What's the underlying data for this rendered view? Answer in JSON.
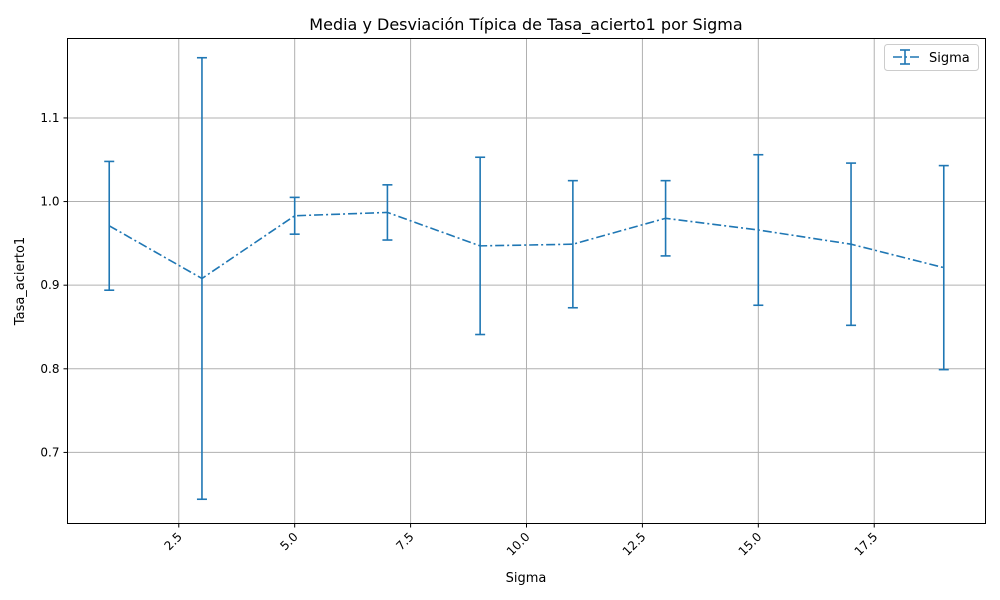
{
  "chart_data": {
    "type": "line",
    "title": "Media y Desviación Típica de Tasa_acierto1 por Sigma",
    "xlabel": "Sigma",
    "ylabel": "Tasa_acierto1",
    "xlim": [
      0.1,
      19.9
    ],
    "ylim": [
      0.615,
      1.195
    ],
    "xticks": [
      2.5,
      5.0,
      7.5,
      10.0,
      12.5,
      15.0,
      17.5
    ],
    "xtick_labels": [
      "2.5",
      "5.0",
      "7.5",
      "10.0",
      "12.5",
      "15.0",
      "17.5"
    ],
    "yticks": [
      0.7,
      0.8,
      0.9,
      1.0,
      1.1
    ],
    "ytick_labels": [
      "0.7",
      "0.8",
      "0.9",
      "1.0",
      "1.1"
    ],
    "xtick_rotation": 45,
    "grid": true,
    "legend_position": "top-right",
    "line_style": "dash-dot",
    "color": "#1f77b4",
    "series": [
      {
        "name": "Sigma",
        "x": [
          1,
          3,
          5,
          7,
          9,
          11,
          13,
          15,
          17,
          19
        ],
        "y": [
          0.971,
          0.908,
          0.983,
          0.987,
          0.947,
          0.949,
          0.98,
          0.966,
          0.949,
          0.921
        ],
        "yerr": [
          0.077,
          0.264,
          0.022,
          0.033,
          0.106,
          0.076,
          0.045,
          0.09,
          0.097,
          0.122
        ]
      }
    ]
  }
}
